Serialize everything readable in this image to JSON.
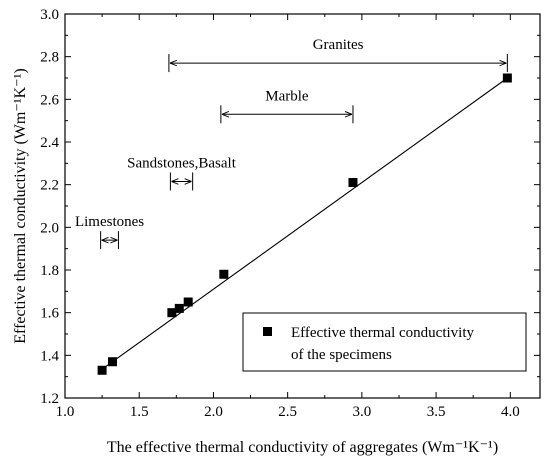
{
  "chart_data": {
    "type": "scatter",
    "title": "",
    "xlabel": "The effective thermal conductivity of aggregates (Wm⁻¹K⁻¹)",
    "ylabel": "Effective thermal conductivity (Wm⁻¹K⁻¹)",
    "xlim": [
      1.0,
      4.2
    ],
    "ylim": [
      1.2,
      3.0
    ],
    "xticks": [
      "1.0",
      "1.5",
      "2.0",
      "2.5",
      "3.0",
      "3.5",
      "4.0"
    ],
    "yticks": [
      "1.2",
      "1.4",
      "1.6",
      "1.8",
      "2.0",
      "2.2",
      "2.4",
      "2.6",
      "2.8",
      "3.0"
    ],
    "grid": false,
    "series": [
      {
        "name": "Effective thermal conductivity of the specimens",
        "marker": "square",
        "x": [
          1.25,
          1.32,
          1.72,
          1.77,
          1.83,
          2.07,
          2.94,
          3.98
        ],
        "y": [
          1.33,
          1.37,
          1.6,
          1.62,
          1.65,
          1.78,
          2.21,
          2.7
        ]
      }
    ],
    "fit_line": {
      "x": [
        1.25,
        3.98
      ],
      "y": [
        1.335,
        2.7
      ]
    },
    "annotations": [
      {
        "label": "Granites",
        "x_from": 1.7,
        "x_to": 3.98,
        "y": 2.77
      },
      {
        "label": "Marble",
        "x_from": 2.05,
        "x_to": 2.94,
        "y": 2.53
      },
      {
        "label": "Sandstones,Basalt",
        "x_from": 1.71,
        "x_to": 1.86,
        "y": 2.215
      },
      {
        "label": "Limestones",
        "x_from": 1.24,
        "x_to": 1.36,
        "y": 1.94
      }
    ],
    "legend": {
      "position": "bottom-right",
      "line1": "Effective thermal conductivity",
      "line2": "of the specimens"
    },
    "colors": {
      "marker": "#000000",
      "line": "#000000",
      "axes": "#000000"
    }
  }
}
